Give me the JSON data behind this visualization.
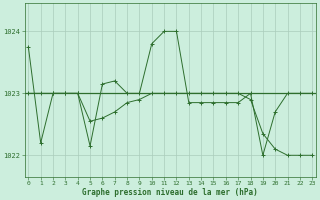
{
  "line1_x": [
    0,
    1,
    2,
    3,
    4,
    5,
    6,
    7,
    8,
    9,
    10,
    11,
    12,
    13,
    14,
    15,
    16,
    17,
    18,
    19,
    20,
    21,
    22,
    23
  ],
  "line1_y": [
    1023.75,
    1022.2,
    1023.0,
    1023.0,
    1023.0,
    1022.15,
    1023.15,
    1023.2,
    1023.0,
    1023.0,
    1023.8,
    1024.0,
    1024.0,
    1022.85,
    1022.85,
    1022.85,
    1022.85,
    1022.85,
    1023.0,
    1022.0,
    1022.7,
    1023.0,
    1023.0,
    1023.0
  ],
  "line2_x": [
    0,
    1,
    2,
    3,
    4,
    5,
    6,
    7,
    8,
    9,
    10,
    11,
    12,
    13,
    14,
    15,
    16,
    17,
    18,
    19,
    20,
    21,
    22,
    23
  ],
  "line2_y": [
    1023.0,
    1023.0,
    1023.0,
    1023.0,
    1023.0,
    1022.55,
    1022.6,
    1022.7,
    1022.85,
    1022.9,
    1023.0,
    1023.0,
    1023.0,
    1023.0,
    1023.0,
    1023.0,
    1023.0,
    1023.0,
    1022.9,
    1022.35,
    1022.1,
    1022.0,
    1022.0,
    1022.0
  ],
  "hline_y": 1023.0,
  "line_color": "#2d6e2d",
  "background_color": "#cceedd",
  "grid_color_major": "#aaccbb",
  "grid_color_minor": "#bbddcc",
  "xlabel": "Graphe pression niveau de la mer (hPa)",
  "ylim": [
    1021.65,
    1024.45
  ],
  "yticks": [
    1022,
    1023,
    1024
  ],
  "xticks": [
    0,
    1,
    2,
    3,
    4,
    5,
    6,
    7,
    8,
    9,
    10,
    11,
    12,
    13,
    14,
    15,
    16,
    17,
    18,
    19,
    20,
    21,
    22,
    23
  ],
  "xlim": [
    -0.3,
    23.3
  ]
}
